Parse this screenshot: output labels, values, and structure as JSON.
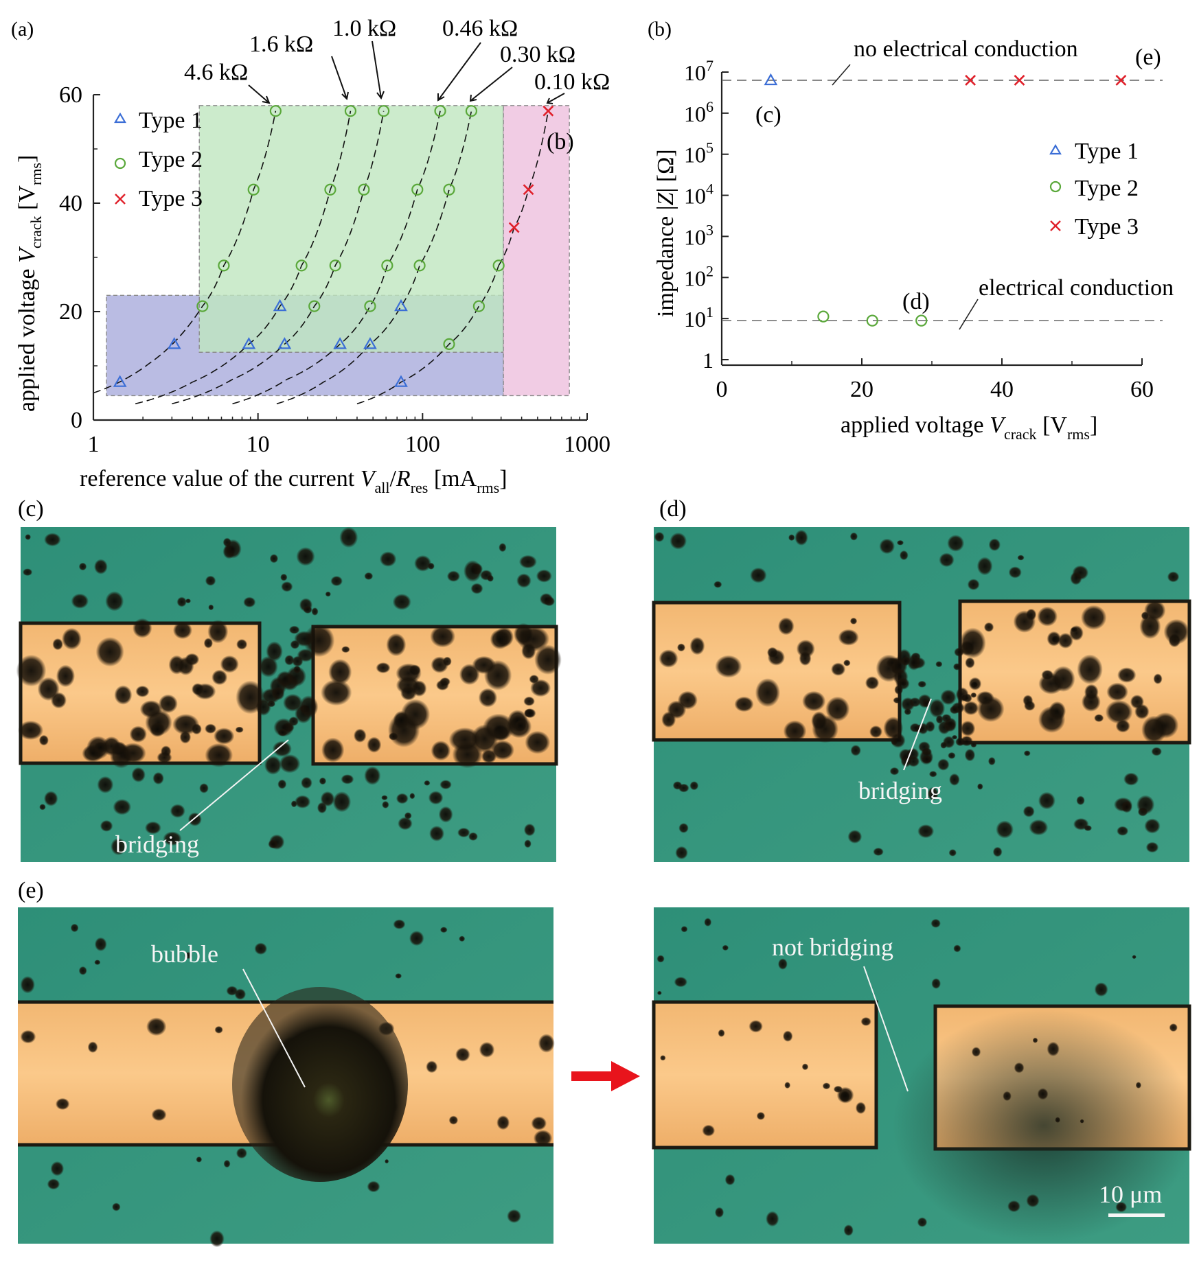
{
  "panel_labels": {
    "a": "(a)",
    "b": "(b)",
    "c": "(c)",
    "d": "(d)",
    "e": "(e)"
  },
  "colors": {
    "type1": "#3b6ed6",
    "type2": "#5aa83a",
    "type3": "#e0202a",
    "region_type1": "#aeb0de",
    "region_type2": "#bfe6bf",
    "region_type3": "#eec3df",
    "arrow": "#e8141c"
  },
  "chart_data": [
    {
      "id": "a",
      "type": "scatter",
      "xscale": "log",
      "xlim": [
        1,
        1000
      ],
      "ylim": [
        0,
        60
      ],
      "xticks": [
        1,
        10,
        100,
        1000
      ],
      "xtick_labels": [
        "1",
        "10",
        "100",
        "1000"
      ],
      "yticks": [
        0,
        20,
        40,
        60
      ],
      "ytick_labels": [
        "0",
        "20",
        "40",
        "60"
      ],
      "xlabel": {
        "main": "reference value of the current ",
        "v": "V",
        "v_sub": "all",
        "slash": "/",
        "r": "R",
        "r_sub": "res",
        "unit": " [mA",
        "unit_sub": "rms",
        "close": "]"
      },
      "ylabel": {
        "main": "applied voltage ",
        "v": "V",
        "v_sub": "crack",
        "unit": " [V",
        "unit_sub": "rms",
        "close": "]"
      },
      "legend": {
        "position": "top-left",
        "entries": [
          "Type 1",
          "Type 2",
          "Type 3"
        ]
      },
      "regions": [
        {
          "series": "Type 1",
          "x": [
            1.2,
            310
          ],
          "y": [
            4.5,
            23
          ]
        },
        {
          "series": "Type 2",
          "x": [
            4.4,
            310
          ],
          "y": [
            12.5,
            58
          ]
        },
        {
          "series": "Type 3",
          "x": [
            310,
            780
          ],
          "y": [
            4.5,
            58
          ]
        }
      ],
      "series": [
        {
          "name": "Type 1",
          "marker": "triangle",
          "points": [
            [
              1.45,
              7
            ],
            [
              3.1,
              14
            ],
            [
              8.8,
              14
            ],
            [
              14.5,
              14
            ],
            [
              13.6,
              21
            ],
            [
              31.5,
              14
            ],
            [
              48,
              14
            ],
            [
              74,
              21
            ],
            [
              74,
              7
            ]
          ]
        },
        {
          "name": "Type 2",
          "marker": "circle",
          "points": [
            [
              4.6,
              21
            ],
            [
              6.2,
              28.5
            ],
            [
              9.4,
              42.5
            ],
            [
              12.8,
              57
            ],
            [
              18.4,
              28.5
            ],
            [
              22,
              21
            ],
            [
              27.5,
              42.5
            ],
            [
              29.5,
              28.5
            ],
            [
              36.5,
              57
            ],
            [
              44,
              42.5
            ],
            [
              48,
              21
            ],
            [
              58,
              57
            ],
            [
              61,
              28.5
            ],
            [
              93,
              42.5
            ],
            [
              96,
              28.5
            ],
            [
              128,
              57
            ],
            [
              145,
              42.5
            ],
            [
              145,
              14
            ],
            [
              198,
              57
            ],
            [
              220,
              21
            ],
            [
              290,
              28.5
            ]
          ]
        },
        {
          "name": "Type 3",
          "marker": "cross",
          "points": [
            [
              360,
              35.5
            ],
            [
              440,
              42.5
            ],
            [
              580,
              57
            ]
          ]
        }
      ],
      "curves": [
        {
          "label": "4.6 kΩ",
          "points": [
            [
              1,
              5
            ],
            [
              2.2,
              10.5
            ],
            [
              4.6,
              21
            ],
            [
              6.2,
              28.5
            ],
            [
              9.4,
              42.5
            ],
            [
              12.8,
              57
            ]
          ]
        },
        {
          "label": "1.6 kΩ",
          "points": [
            [
              1.8,
              3
            ],
            [
              4,
              7
            ],
            [
              8.8,
              14
            ],
            [
              13.6,
              21
            ],
            [
              18.4,
              28.5
            ],
            [
              27.5,
              42.5
            ],
            [
              36.5,
              57
            ]
          ]
        },
        {
          "label": "1.0 kΩ",
          "points": [
            [
              3,
              3
            ],
            [
              7,
              7.5
            ],
            [
              14.5,
              14
            ],
            [
              22,
              21
            ],
            [
              29.5,
              28.5
            ],
            [
              44,
              42.5
            ],
            [
              58,
              57
            ]
          ]
        },
        {
          "label": "0.46 kΩ",
          "points": [
            [
              7,
              3
            ],
            [
              15,
              7.5
            ],
            [
              31.5,
              14
            ],
            [
              48,
              21
            ],
            [
              61,
              28.5
            ],
            [
              93,
              42.5
            ],
            [
              128,
              57
            ]
          ]
        },
        {
          "label": "0.30 kΩ",
          "points": [
            [
              13,
              3
            ],
            [
              25,
              7
            ],
            [
              48,
              14
            ],
            [
              74,
              21
            ],
            [
              96,
              28.5
            ],
            [
              145,
              42.5
            ],
            [
              198,
              57
            ]
          ]
        },
        {
          "label": "",
          "points": [
            [
              40,
              3
            ],
            [
              74,
              7
            ],
            [
              145,
              14
            ],
            [
              220,
              21
            ],
            [
              290,
              28.5
            ]
          ]
        },
        {
          "label": "0.10 kΩ",
          "points": [
            [
              290,
              28.5
            ],
            [
              360,
              35.5
            ],
            [
              440,
              42.5
            ],
            [
              580,
              57
            ]
          ]
        }
      ],
      "annotations": [
        "4.6 kΩ",
        "1.6 kΩ",
        "1.0 kΩ",
        "0.46 kΩ",
        "0.30 kΩ",
        "0.10 kΩ",
        "(b)"
      ]
    },
    {
      "id": "b",
      "type": "scatter",
      "yscale": "log",
      "xlim": [
        0,
        60
      ],
      "ylim_exponent": [
        0,
        7
      ],
      "xticks": [
        0,
        20,
        40,
        60
      ],
      "xtick_labels": [
        "0",
        "20",
        "40",
        "60"
      ],
      "ytick_labels": [
        {
          "base": "1",
          "exp": ""
        },
        {
          "base": "10",
          "exp": "1"
        },
        {
          "base": "10",
          "exp": "2"
        },
        {
          "base": "10",
          "exp": "3"
        },
        {
          "base": "10",
          "exp": "4"
        },
        {
          "base": "10",
          "exp": "5"
        },
        {
          "base": "10",
          "exp": "6"
        },
        {
          "base": "10",
          "exp": "7"
        }
      ],
      "xlabel": {
        "main": "applied voltage ",
        "v": "V",
        "v_sub": "crack",
        "unit": " [V",
        "unit_sub": "rms",
        "close": "]"
      },
      "ylabel": {
        "main": "impedance |",
        "z": "Z",
        "unit": "| [Ω]"
      },
      "legend": {
        "position": "right",
        "entries": [
          "Type 1",
          "Type 2",
          "Type 3"
        ]
      },
      "reference_lines": [
        {
          "label": "no electrical conduction",
          "y_exponent": 6.8
        },
        {
          "label": "electrical conduction",
          "y_exponent": 0.95
        }
      ],
      "series": [
        {
          "name": "Type 1",
          "marker": "triangle",
          "points": [
            [
              7,
              6.8
            ]
          ]
        },
        {
          "name": "Type 2",
          "marker": "circle",
          "points": [
            [
              14.5,
              1.05
            ],
            [
              21.5,
              0.95
            ],
            [
              28.5,
              0.95
            ]
          ]
        },
        {
          "name": "Type 3",
          "marker": "cross",
          "points": [
            [
              35.5,
              6.8
            ],
            [
              42.5,
              6.8
            ],
            [
              57,
              6.8
            ]
          ]
        }
      ],
      "point_labels": {
        "c": "(c)",
        "d": "(d)",
        "e": "(e)"
      }
    }
  ],
  "photos": {
    "c": {
      "annotation": "bridging"
    },
    "d": {
      "annotation": "bridging"
    },
    "e_left": {
      "annotation": "bubble"
    },
    "e_right": {
      "annotation": "not bridging"
    },
    "scale_bar": "10 μm"
  }
}
